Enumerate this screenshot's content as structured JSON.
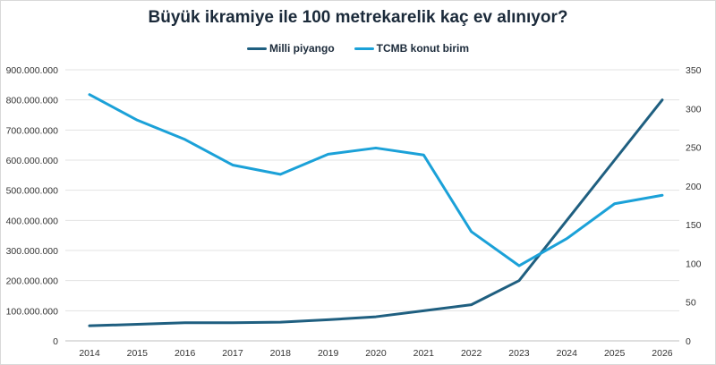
{
  "chart_data": {
    "type": "line",
    "title": "Büyük ikramiye ile 100 metrekarelik kaç ev alınıyor?",
    "categories": [
      "2014",
      "2015",
      "2016",
      "2017",
      "2018",
      "2019",
      "2020",
      "2021",
      "2022",
      "2023",
      "2024",
      "2025",
      "2026"
    ],
    "series": [
      {
        "name": "Milli piyango",
        "axis": "left",
        "color": "#1f5f80",
        "values": [
          50000000,
          55000000,
          60000000,
          60000000,
          62000000,
          70000000,
          80000000,
          100000000,
          120000000,
          200000000,
          400000000,
          600000000,
          800000000
        ]
      },
      {
        "name": "TCMB konut birim",
        "axis": "right",
        "color": "#1ba1d8",
        "values": [
          318,
          285,
          260,
          227,
          215,
          241,
          249,
          240,
          141,
          97,
          132,
          177,
          188
        ]
      }
    ],
    "left_axis": {
      "ylim": [
        0,
        900000000
      ],
      "ticks": [
        "0",
        "100.000.000",
        "200.000.000",
        "300.000.000",
        "400.000.000",
        "500.000.000",
        "600.000.000",
        "700.000.000",
        "800.000.000",
        "900.000.000"
      ]
    },
    "right_axis": {
      "ylim": [
        0,
        350
      ],
      "ticks": [
        "0",
        "50",
        "100",
        "150",
        "200",
        "250",
        "300",
        "350"
      ]
    },
    "grid": true,
    "legend": "top"
  }
}
